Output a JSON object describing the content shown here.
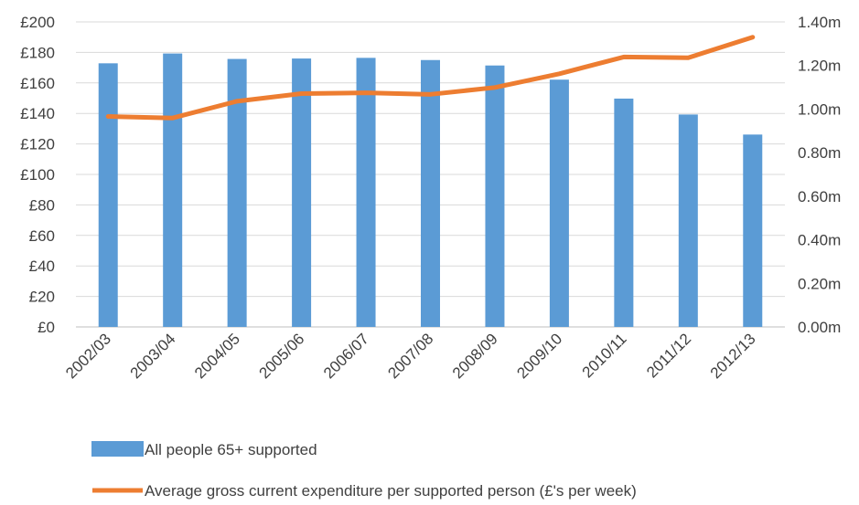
{
  "chart_data": {
    "type": "bar",
    "categories": [
      "2002/03",
      "2003/04",
      "2004/05",
      "2005/06",
      "2006/07",
      "2007/08",
      "2008/09",
      "2009/10",
      "2010/11",
      "2011/12",
      "2012/13"
    ],
    "series": [
      {
        "name": "All people 65+ supported",
        "type": "bar",
        "axis": "right",
        "color": "#5B9BD5",
        "values": [
          1.21,
          1.255,
          1.23,
          1.232,
          1.235,
          1.225,
          1.2,
          1.135,
          1.048,
          0.975,
          0.883
        ]
      },
      {
        "name": "Average gross current expenditure per supported person (£'s per week)",
        "type": "line",
        "axis": "left",
        "color": "#ED7D31",
        "values": [
          138,
          137,
          148,
          153,
          153.5,
          152.5,
          157,
          166,
          177,
          176.5,
          190
        ]
      }
    ],
    "y_left": {
      "ticks": [
        "£0",
        "£20",
        "£40",
        "£60",
        "£80",
        "£100",
        "£120",
        "£140",
        "£160",
        "£180",
        "£200"
      ],
      "min": 0,
      "max": 200
    },
    "y_right": {
      "ticks": [
        "0.00m",
        "0.20m",
        "0.40m",
        "0.60m",
        "0.80m",
        "1.00m",
        "1.20m",
        "1.40m"
      ],
      "min": 0,
      "max": 1.4
    },
    "grid": true,
    "legend_placement": "bottom"
  }
}
